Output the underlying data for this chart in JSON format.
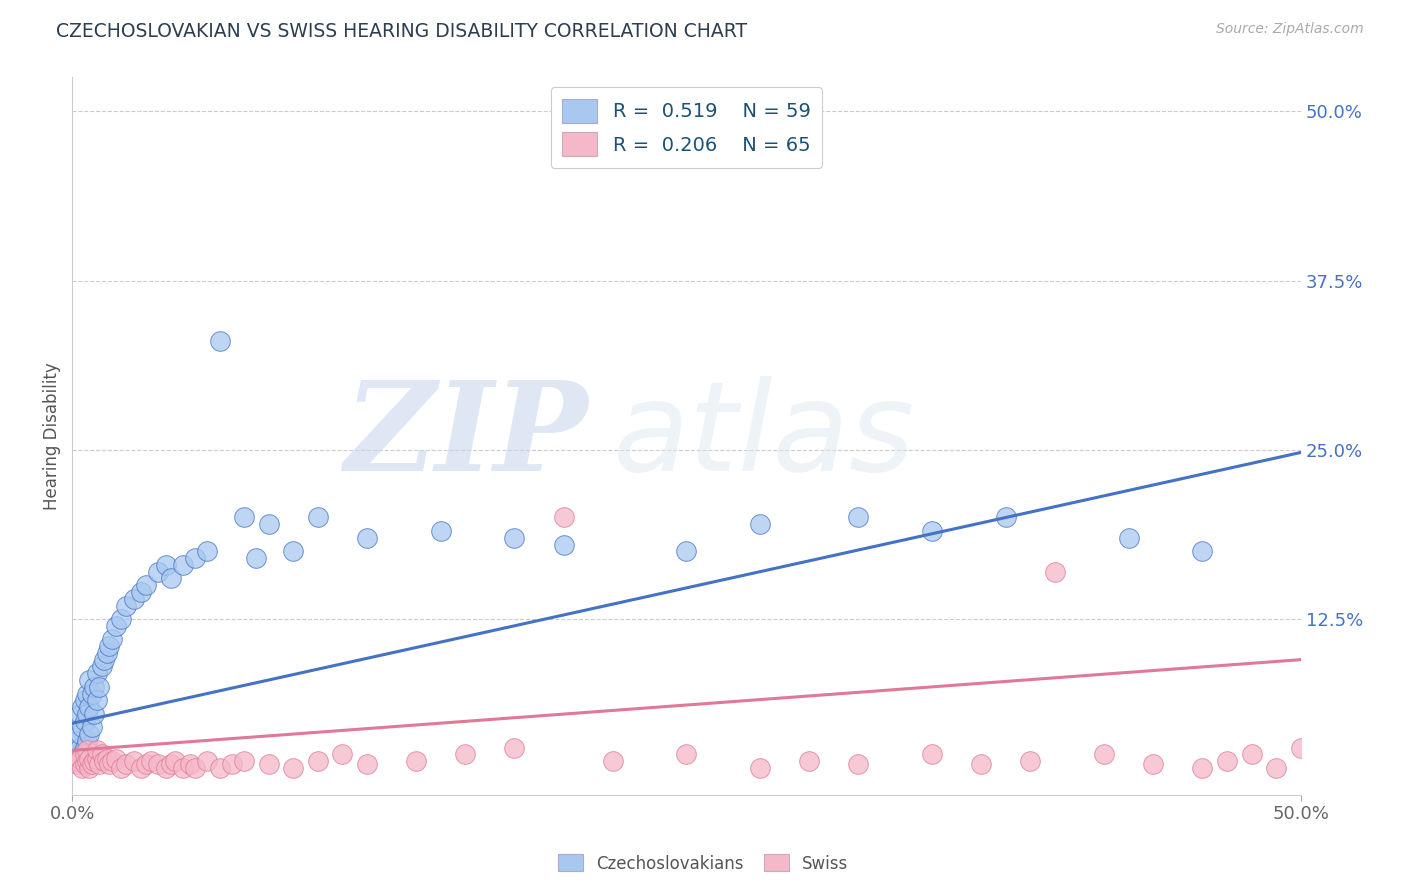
{
  "title": "CZECHOSLOVAKIAN VS SWISS HEARING DISABILITY CORRELATION CHART",
  "source": "Source: ZipAtlas.com",
  "ylabel": "Hearing Disability",
  "ylabel_right_ticks": [
    "50.0%",
    "37.5%",
    "25.0%",
    "12.5%"
  ],
  "ylabel_right_tick_pos": [
    0.5,
    0.375,
    0.25,
    0.125
  ],
  "xlim": [
    0.0,
    0.5
  ],
  "ylim": [
    -0.005,
    0.525
  ],
  "legend_R1": "R =  0.519",
  "legend_N1": "N = 59",
  "legend_R2": "R =  0.206",
  "legend_N2": "N = 65",
  "color_blue": "#a8c8f0",
  "color_pink": "#f5b8c8",
  "color_line_blue": "#4472c4",
  "color_line_pink": "#e07898",
  "color_title": "#2C3E50",
  "color_legend_text": "#1a5276",
  "watermark_ZIP": "ZIP",
  "watermark_atlas": "atlas",
  "legend_label_blue": "Czechoslovakians",
  "legend_label_pink": "Swiss",
  "blue_x": [
    0.001,
    0.002,
    0.002,
    0.003,
    0.003,
    0.003,
    0.004,
    0.004,
    0.004,
    0.005,
    0.005,
    0.005,
    0.006,
    0.006,
    0.006,
    0.007,
    0.007,
    0.007,
    0.008,
    0.008,
    0.009,
    0.009,
    0.01,
    0.01,
    0.011,
    0.012,
    0.013,
    0.014,
    0.015,
    0.016,
    0.018,
    0.02,
    0.022,
    0.025,
    0.028,
    0.03,
    0.035,
    0.038,
    0.04,
    0.045,
    0.05,
    0.055,
    0.06,
    0.07,
    0.075,
    0.08,
    0.09,
    0.1,
    0.12,
    0.15,
    0.18,
    0.2,
    0.25,
    0.28,
    0.32,
    0.35,
    0.38,
    0.43,
    0.46
  ],
  "blue_y": [
    0.02,
    0.025,
    0.035,
    0.03,
    0.04,
    0.055,
    0.025,
    0.045,
    0.06,
    0.03,
    0.05,
    0.065,
    0.035,
    0.055,
    0.07,
    0.04,
    0.06,
    0.08,
    0.045,
    0.07,
    0.055,
    0.075,
    0.065,
    0.085,
    0.075,
    0.09,
    0.095,
    0.1,
    0.105,
    0.11,
    0.12,
    0.125,
    0.135,
    0.14,
    0.145,
    0.15,
    0.16,
    0.165,
    0.155,
    0.165,
    0.17,
    0.175,
    0.33,
    0.2,
    0.17,
    0.195,
    0.175,
    0.2,
    0.185,
    0.19,
    0.185,
    0.18,
    0.175,
    0.195,
    0.2,
    0.19,
    0.2,
    0.185,
    0.175
  ],
  "pink_x": [
    0.001,
    0.002,
    0.003,
    0.004,
    0.005,
    0.005,
    0.006,
    0.006,
    0.007,
    0.007,
    0.008,
    0.009,
    0.01,
    0.01,
    0.011,
    0.012,
    0.013,
    0.014,
    0.015,
    0.016,
    0.018,
    0.02,
    0.022,
    0.025,
    0.028,
    0.03,
    0.032,
    0.035,
    0.038,
    0.04,
    0.042,
    0.045,
    0.048,
    0.05,
    0.055,
    0.06,
    0.065,
    0.07,
    0.08,
    0.09,
    0.1,
    0.11,
    0.12,
    0.14,
    0.16,
    0.18,
    0.2,
    0.22,
    0.25,
    0.28,
    0.3,
    0.32,
    0.35,
    0.37,
    0.39,
    0.4,
    0.42,
    0.44,
    0.46,
    0.47,
    0.48,
    0.49,
    0.5,
    0.51,
    0.53
  ],
  "pink_y": [
    0.02,
    0.018,
    0.022,
    0.015,
    0.018,
    0.025,
    0.02,
    0.028,
    0.015,
    0.022,
    0.018,
    0.02,
    0.022,
    0.028,
    0.018,
    0.025,
    0.02,
    0.022,
    0.018,
    0.02,
    0.022,
    0.015,
    0.018,
    0.02,
    0.015,
    0.018,
    0.02,
    0.018,
    0.015,
    0.018,
    0.02,
    0.015,
    0.018,
    0.015,
    0.02,
    0.015,
    0.018,
    0.02,
    0.018,
    0.015,
    0.02,
    0.025,
    0.018,
    0.02,
    0.025,
    0.03,
    0.2,
    0.02,
    0.025,
    0.015,
    0.02,
    0.018,
    0.025,
    0.018,
    0.02,
    0.16,
    0.025,
    0.018,
    0.015,
    0.02,
    0.025,
    0.015,
    0.03,
    0.02,
    0.03
  ]
}
